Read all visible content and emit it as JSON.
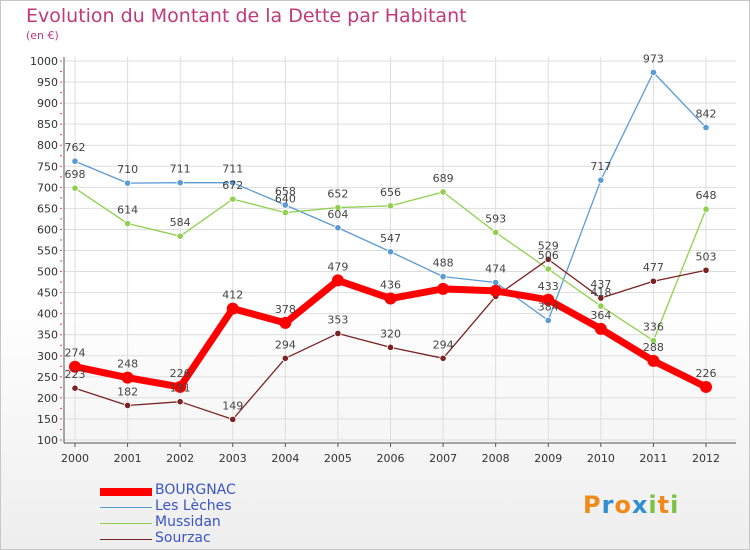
{
  "title": "Evolution du Montant de la Dette par Habitant",
  "subtitle": "(en €)",
  "logo": {
    "letters": [
      "P",
      "r",
      "o",
      "x",
      "i",
      "t",
      "i"
    ],
    "colors": [
      "#f08a1c",
      "#2f8fd0",
      "#f08a1c",
      "#2f8fd0",
      "#7cc242",
      "#f08a1c",
      "#7cc242"
    ]
  },
  "chart_data": {
    "type": "line",
    "x": [
      "2000",
      "2001",
      "2002",
      "2003",
      "2004",
      "2005",
      "2006",
      "2007",
      "2008",
      "2009",
      "2010",
      "2011",
      "2012"
    ],
    "ylim": [
      100,
      1000
    ],
    "yticks": [
      100,
      150,
      200,
      250,
      300,
      350,
      400,
      450,
      500,
      550,
      600,
      650,
      700,
      750,
      800,
      850,
      900,
      950,
      1000
    ],
    "grid": true,
    "legend_position": "bottom",
    "series": [
      {
        "name": "BOURGNAC",
        "color": "#ff0000",
        "values": [
          274,
          248,
          226,
          412,
          378,
          479,
          436,
          459,
          454,
          433,
          364,
          288,
          226
        ],
        "labels": [
          "274",
          "248",
          "226",
          "412",
          "378",
          "479",
          "436",
          "",
          "",
          "433",
          "364",
          "288",
          "226"
        ]
      },
      {
        "name": "Les Lèches",
        "color": "#5b9bd5",
        "values": [
          762,
          710,
          711,
          711,
          658,
          604,
          547,
          488,
          474,
          384,
          717,
          973,
          842
        ],
        "labels": [
          "762",
          "710",
          "711",
          "711",
          "658",
          "604",
          "547",
          "488",
          "474",
          "384",
          "717",
          "973",
          "842"
        ]
      },
      {
        "name": "Mussidan",
        "color": "#8fd14f",
        "values": [
          698,
          614,
          584,
          672,
          640,
          652,
          656,
          689,
          593,
          506,
          418,
          336,
          648
        ],
        "labels": [
          "698",
          "614",
          "584",
          "672",
          "640",
          "652",
          "656",
          "689",
          "593",
          "506",
          "418",
          "336",
          "648"
        ]
      },
      {
        "name": "Sourzac",
        "color": "#7b2222",
        "values": [
          223,
          182,
          191,
          149,
          294,
          353,
          320,
          294,
          441,
          529,
          437,
          477,
          503
        ],
        "labels": [
          "223",
          "182",
          "191",
          "149",
          "294",
          "353",
          "320",
          "294",
          "",
          "529",
          "437",
          "477",
          "503"
        ]
      }
    ]
  }
}
